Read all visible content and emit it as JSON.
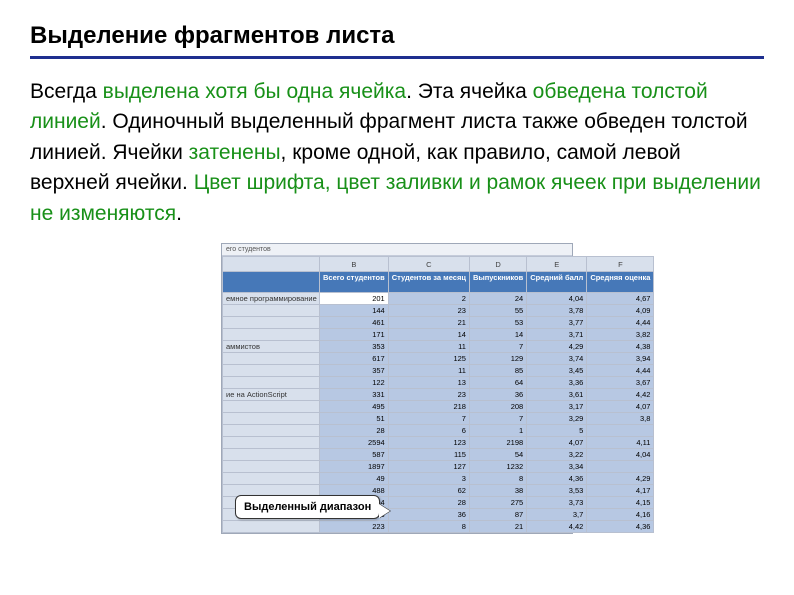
{
  "title": "Выделение фрагментов листа",
  "paragraph": {
    "t1": "Всегда ",
    "hl1": "выделена хотя бы одна ячейка",
    "t2": ". Эта ячейка ",
    "hl2": "обведена толстой линией",
    "t3": ". Одиночный выделенный фрагмент листа также обведен толстой линией. Ячейки ",
    "hl3": "затенены",
    "t4": ", кроме одной, как правило, самой левой верхней ячейки. ",
    "hl4": "Цвет шрифта, цвет заливки и рамок ячеек при выделении не изменяются",
    "t5": "."
  },
  "callout": "Выделенный диапазон",
  "screenshot": {
    "topText": "его студентов",
    "colLetters": [
      "",
      "B",
      "C",
      "D",
      "E",
      "F"
    ],
    "headers": [
      "",
      "Всего студентов",
      "Студентов за месяц",
      "Выпускников",
      "Средний балл",
      "Средняя оценка"
    ],
    "rows": [
      {
        "label": "емное программирование",
        "v": [
          "201",
          "2",
          "24",
          "4,04",
          "4,67"
        ]
      },
      {
        "label": "",
        "v": [
          "144",
          "23",
          "55",
          "3,78",
          "4,09"
        ]
      },
      {
        "label": "",
        "v": [
          "461",
          "21",
          "53",
          "3,77",
          "4,44"
        ]
      },
      {
        "label": "",
        "v": [
          "171",
          "14",
          "14",
          "3,71",
          "3,82"
        ]
      },
      {
        "label": "аммистов",
        "v": [
          "353",
          "11",
          "7",
          "4,29",
          "4,38"
        ]
      },
      {
        "label": "",
        "v": [
          "617",
          "125",
          "129",
          "3,74",
          "3,94"
        ]
      },
      {
        "label": "",
        "v": [
          "357",
          "11",
          "85",
          "3,45",
          "4,44"
        ]
      },
      {
        "label": "",
        "v": [
          "122",
          "13",
          "64",
          "3,36",
          "3,67"
        ]
      },
      {
        "label": "ие на ActionScript",
        "v": [
          "331",
          "23",
          "36",
          "3,61",
          "4,42"
        ]
      },
      {
        "label": "",
        "v": [
          "495",
          "218",
          "208",
          "3,17",
          "4,07"
        ]
      },
      {
        "label": "",
        "v": [
          "51",
          "7",
          "7",
          "3,29",
          "3,8"
        ]
      },
      {
        "label": "",
        "v": [
          "28",
          "6",
          "1",
          "5",
          ""
        ]
      },
      {
        "label": "",
        "v": [
          "2594",
          "123",
          "2198",
          "4,07",
          "4,11"
        ]
      },
      {
        "label": "",
        "v": [
          "587",
          "115",
          "54",
          "3,22",
          "4,04"
        ]
      },
      {
        "label": "",
        "v": [
          "1897",
          "127",
          "1232",
          "3,34",
          ""
        ]
      },
      {
        "label": "",
        "v": [
          "49",
          "3",
          "8",
          "4,36",
          "4,29"
        ]
      },
      {
        "label": "",
        "v": [
          "488",
          "62",
          "38",
          "3,53",
          "4,17"
        ]
      },
      {
        "label": "",
        "v": [
          "1494",
          "28",
          "275",
          "3,73",
          "4,15"
        ]
      },
      {
        "label": "",
        "v": [
          "553",
          "36",
          "87",
          "3,7",
          "4,16"
        ]
      },
      {
        "label": "",
        "v": [
          "223",
          "8",
          "21",
          "4,42",
          "4,36"
        ]
      }
    ],
    "rowLabelColor": "#d8e0ec",
    "headerBg": "#4678b8",
    "selectionBg": "#b7c8e3",
    "gridBorder": "#b8c0d0"
  }
}
